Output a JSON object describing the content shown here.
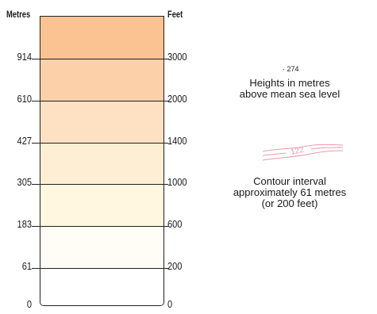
{
  "left_axis_title": "Metres",
  "right_axis_title": "Feet",
  "tiers": [
    {
      "metres": "0",
      "feet": "0",
      "color": "#ffffff"
    },
    {
      "metres": "61",
      "feet": "200",
      "color": "#fffdf5"
    },
    {
      "metres": "183",
      "feet": "600",
      "color": "#fff7e0"
    },
    {
      "metres": "305",
      "feet": "1000",
      "color": "#feefd4"
    },
    {
      "metres": "427",
      "feet": "1400",
      "color": "#fde1c2"
    },
    {
      "metres": "610",
      "feet": "2000",
      "color": "#fcd0a8"
    },
    {
      "metres": "914",
      "feet": "3000",
      "color": "#fbc392"
    }
  ],
  "legend": {
    "spot_height_marker": "·",
    "spot_height_value": "274",
    "heights_caption_line1": "Heights in metres",
    "heights_caption_line2": "above mean sea level",
    "contour_sample_label": "122",
    "contour_caption_line1": "Contour interval",
    "contour_caption_line2": "approximately 61 metres",
    "contour_caption_line3": "(or 200 feet)"
  },
  "colors": {
    "contour_line": "#e89aaa",
    "outline": "#222222"
  }
}
